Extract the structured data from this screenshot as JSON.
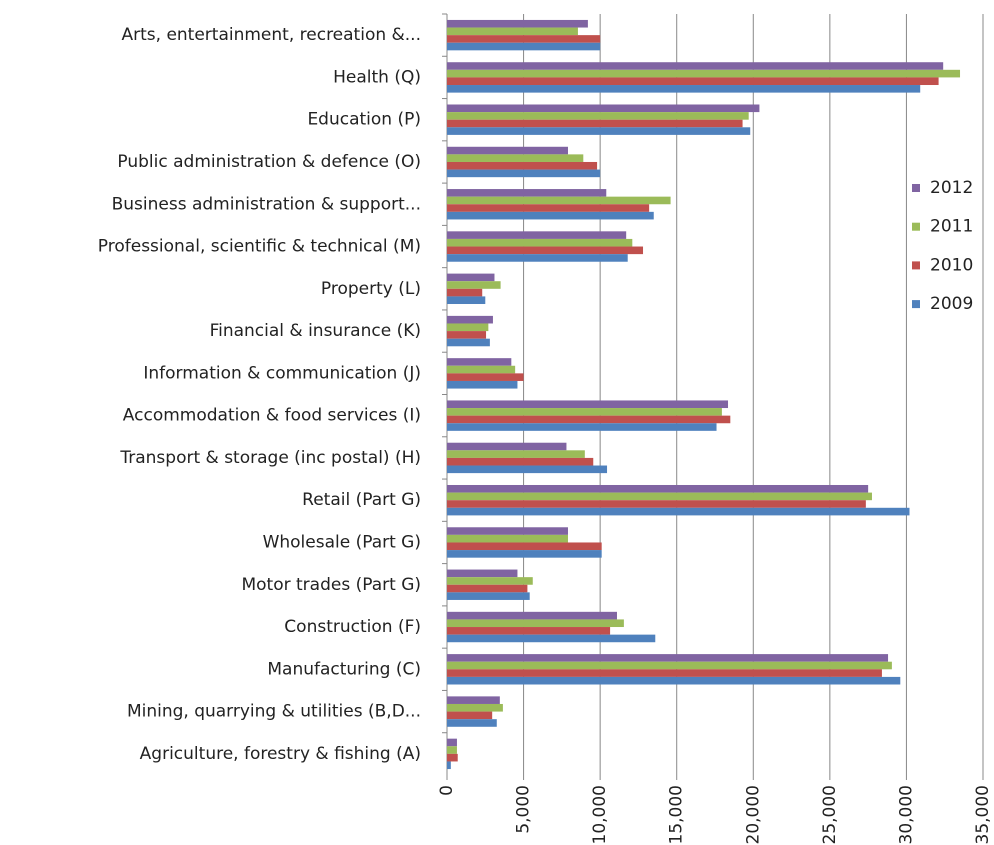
{
  "chart_data": {
    "type": "bar",
    "orientation": "horizontal",
    "categories": [
      "Arts, entertainment, recreation &...",
      "Health (Q)",
      "Education (P)",
      "Public administration & defence (O)",
      "Business administration & support...",
      "Professional, scientific & technical (M)",
      "Property (L)",
      "Financial & insurance (K)",
      "Information & communication (J)",
      "Accommodation & food services (I)",
      "Transport & storage (inc postal) (H)",
      "Retail (Part G)",
      "Wholesale (Part G)",
      "Motor trades (Part G)",
      "Construction (F)",
      "Manufacturing (C)",
      "Mining, quarrying & utilities (B,D...",
      "Agriculture, forestry & fishing (A)"
    ],
    "series": [
      {
        "name": "2012",
        "color": "#8064a2",
        "values": [
          9200,
          32400,
          20400,
          7900,
          10400,
          11700,
          3100,
          3000,
          4200,
          18350,
          7800,
          27500,
          7900,
          4600,
          11100,
          28800,
          3450,
          650
        ]
      },
      {
        "name": "2011",
        "color": "#9bbb59",
        "values": [
          8550,
          33500,
          19700,
          8900,
          14600,
          12100,
          3500,
          2700,
          4450,
          17950,
          9000,
          27750,
          7900,
          5600,
          11550,
          29050,
          3650,
          650
        ]
      },
      {
        "name": "2010",
        "color": "#c0504d",
        "values": [
          10000,
          32100,
          19300,
          9800,
          13200,
          12800,
          2300,
          2550,
          5000,
          18500,
          9550,
          27350,
          10100,
          5250,
          10650,
          28400,
          2950,
          700
        ]
      },
      {
        "name": "2009",
        "color": "#4f81bd",
        "values": [
          10000,
          30900,
          19800,
          10000,
          13500,
          11800,
          2500,
          2800,
          4600,
          17600,
          10450,
          30200,
          10100,
          5400,
          13600,
          29600,
          3250,
          250
        ]
      }
    ],
    "xlim": [
      0,
      35000
    ],
    "xticks": [
      0,
      {
        "value": 5000,
        "label": "5,000"
      },
      {
        "value": 10000,
        "label": "10,000"
      },
      {
        "value": 15000,
        "label": "15,000"
      },
      {
        "value": 20000,
        "label": "20,000"
      },
      {
        "value": 25000,
        "label": "25,000"
      },
      {
        "value": 30000,
        "label": "30,000"
      },
      {
        "value": 35000,
        "label": "35,000"
      }
    ],
    "grid": true,
    "legend": "right"
  }
}
